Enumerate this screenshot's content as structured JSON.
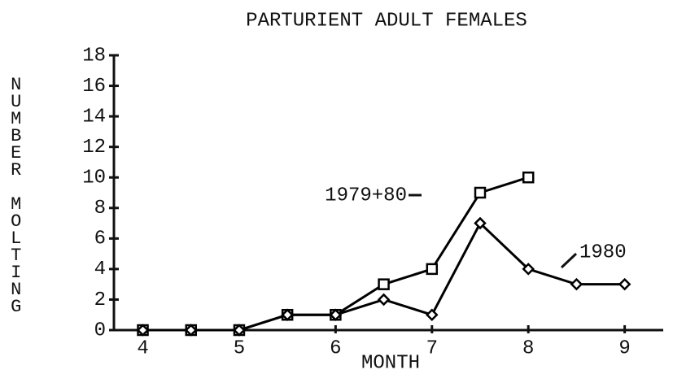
{
  "chart_data": {
    "type": "line",
    "title": "PARTURIENT ADULT FEMALES",
    "xlabel": "MONTH",
    "ylabel": "NUMBER MOLTING",
    "xlim": [
      3.7,
      9.4
    ],
    "xticks": [
      4,
      5,
      6,
      7,
      8,
      9
    ],
    "ylim": [
      0,
      18
    ],
    "yticks": [
      0,
      2,
      4,
      6,
      8,
      10,
      12,
      14,
      16,
      18
    ],
    "series": [
      {
        "name": "1979+80",
        "color": "#000000",
        "marker": "square",
        "x": [
          4,
          4.5,
          5,
          5.5,
          6,
          6.5,
          7,
          7.5,
          8
        ],
        "values": [
          0,
          0,
          0,
          1,
          1,
          3,
          4,
          9,
          10
        ]
      },
      {
        "name": "1980",
        "color": "#000000",
        "marker": "diamond",
        "x": [
          4,
          4.5,
          5,
          5.5,
          6,
          6.5,
          7,
          7.5,
          8,
          8.5,
          9
        ],
        "values": [
          0,
          0,
          0,
          1,
          1,
          2,
          1,
          7,
          4,
          3,
          3
        ]
      }
    ]
  }
}
